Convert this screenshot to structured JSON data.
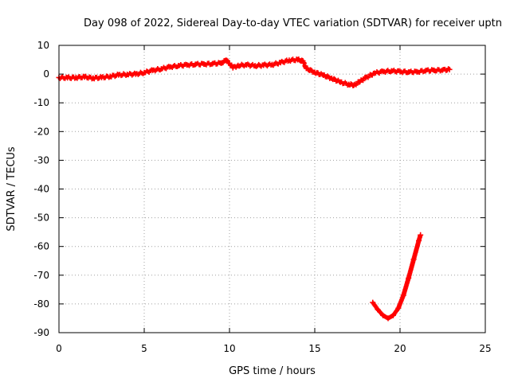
{
  "chart_data": {
    "type": "scatter",
    "title": "Day 098 of 2022, Sidereal Day-to-day VTEC variation (SDTVAR) for receiver uptn",
    "xlabel": "GPS time / hours",
    "ylabel": "SDTVAR / TECUs",
    "xlim": [
      0,
      25
    ],
    "ylim": [
      -90,
      10
    ],
    "xticks": [
      0,
      5,
      10,
      15,
      20,
      25
    ],
    "yticks": [
      10,
      0,
      -10,
      -20,
      -30,
      -40,
      -50,
      -60,
      -70,
      -80,
      -90
    ],
    "grid": true,
    "marker_color": "#ff0000",
    "series": [
      {
        "name": "SDTVAR main track",
        "points": [
          [
            0.0,
            -1.2
          ],
          [
            0.5,
            -1.3
          ],
          [
            1.0,
            -1.2
          ],
          [
            1.5,
            -1.0
          ],
          [
            2.0,
            -1.4
          ],
          [
            2.5,
            -1.2
          ],
          [
            3.0,
            -0.8
          ],
          [
            3.5,
            -0.3
          ],
          [
            4.0,
            -0.1
          ],
          [
            4.5,
            0.0
          ],
          [
            5.0,
            0.5
          ],
          [
            5.5,
            1.3
          ],
          [
            6.0,
            1.8
          ],
          [
            6.5,
            2.5
          ],
          [
            7.0,
            2.9
          ],
          [
            7.5,
            3.2
          ],
          [
            8.0,
            3.4
          ],
          [
            8.5,
            3.5
          ],
          [
            9.0,
            3.6
          ],
          [
            9.5,
            3.8
          ],
          [
            9.8,
            4.8
          ],
          [
            10.0,
            3.8
          ],
          [
            10.2,
            2.2
          ],
          [
            10.5,
            3.0
          ],
          [
            11.0,
            3.2
          ],
          [
            11.5,
            2.9
          ],
          [
            12.0,
            3.1
          ],
          [
            12.5,
            3.3
          ],
          [
            13.0,
            4.0
          ],
          [
            13.5,
            4.8
          ],
          [
            14.0,
            5.0
          ],
          [
            14.3,
            4.6
          ],
          [
            14.5,
            2.0
          ],
          [
            15.0,
            0.6
          ],
          [
            15.5,
            -0.4
          ],
          [
            16.0,
            -1.5
          ],
          [
            16.5,
            -2.8
          ],
          [
            17.0,
            -3.6
          ],
          [
            17.3,
            -3.8
          ],
          [
            17.6,
            -2.8
          ],
          [
            18.0,
            -1.2
          ],
          [
            18.5,
            0.3
          ],
          [
            19.0,
            0.9
          ],
          [
            19.5,
            1.1
          ],
          [
            20.0,
            0.9
          ],
          [
            20.5,
            0.7
          ],
          [
            21.0,
            0.8
          ],
          [
            21.5,
            1.2
          ],
          [
            22.0,
            1.3
          ],
          [
            22.5,
            1.4
          ],
          [
            22.9,
            1.6
          ]
        ]
      },
      {
        "name": "SDTVAR outlier arc",
        "points": [
          [
            18.4,
            -79.5
          ],
          [
            18.7,
            -82.0
          ],
          [
            19.0,
            -84.0
          ],
          [
            19.3,
            -85.0
          ],
          [
            19.6,
            -84.0
          ],
          [
            19.9,
            -81.5
          ],
          [
            20.2,
            -77.0
          ],
          [
            20.5,
            -71.0
          ],
          [
            20.8,
            -64.5
          ],
          [
            21.1,
            -58.0
          ],
          [
            21.2,
            -56.0
          ]
        ]
      }
    ]
  }
}
